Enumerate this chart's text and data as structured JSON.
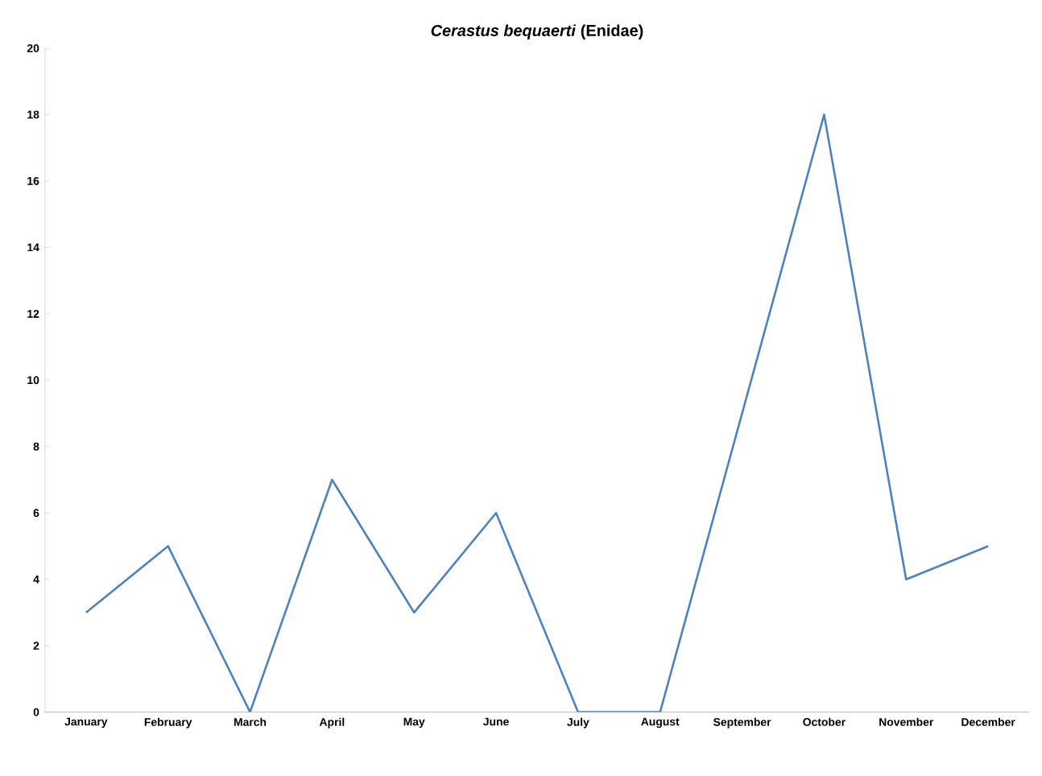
{
  "chart_data": {
    "type": "line",
    "title": "*Cerastus bequaerti* (Enidae)",
    "categories": [
      "January",
      "February",
      "March",
      "April",
      "May",
      "June",
      "July",
      "August",
      "September",
      "October",
      "November",
      "December"
    ],
    "values": [
      3,
      5,
      0,
      7,
      3,
      6,
      0,
      0,
      9,
      18,
      4,
      5
    ],
    "color": "#4f81bd",
    "ylim": [
      0,
      20
    ],
    "yticks": [
      0,
      2,
      4,
      6,
      8,
      10,
      12,
      14,
      16,
      18,
      20
    ],
    "grid": false,
    "marker": "none",
    "line_style": "solid"
  }
}
